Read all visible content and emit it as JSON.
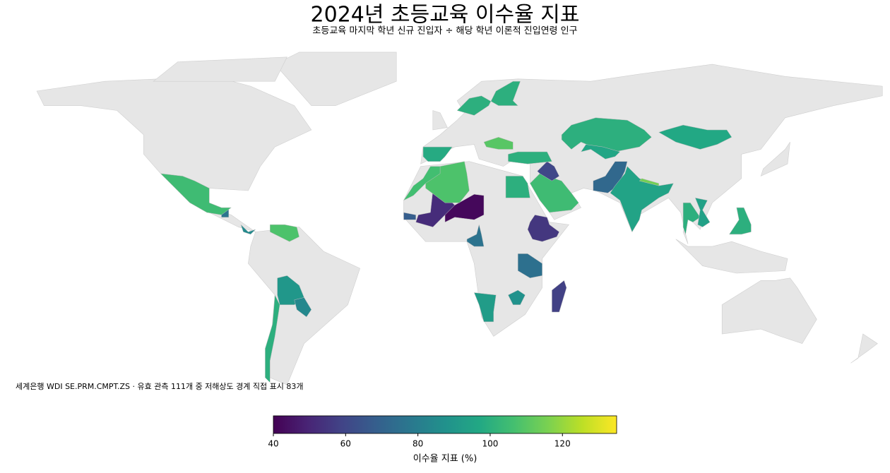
{
  "chart_data": {
    "type": "choropleth",
    "title": "2024년 초등교육 이수율 지표",
    "subtitle": "초등교육 마지막 학년 신규 진입자 ÷ 해당 학년 이론적 진입연령 인구",
    "note": "세계은행 WDI SE.PRM.CMPT.ZS · 유효 관측 111개 중 저해상도 경계 직접 표시 83개",
    "colormap": "viridis",
    "values": [
      42,
      52,
      55,
      58,
      75,
      72,
      76,
      68,
      77,
      105,
      90,
      84,
      100,
      108,
      106,
      100,
      105,
      95,
      100,
      97,
      92,
      88,
      98,
      100,
      100,
      108,
      60,
      100,
      94,
      115,
      96,
      85,
      110,
      100
    ],
    "colorbar_label": "이수율 지표 (%)",
    "clim": [
      40,
      135
    ],
    "cticks": [
      40,
      60,
      80,
      100,
      120
    ]
  }
}
